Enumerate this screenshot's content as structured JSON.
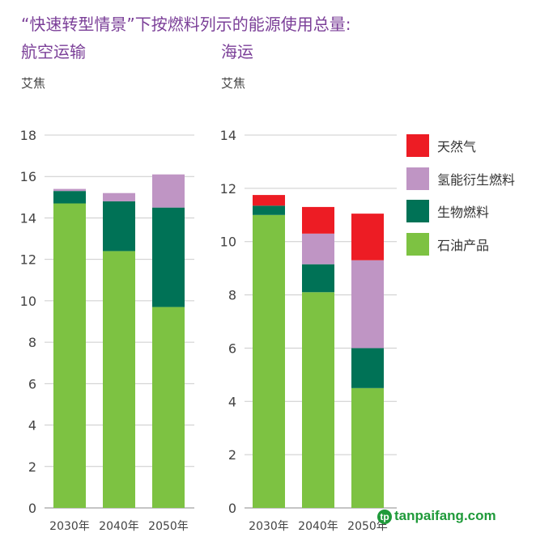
{
  "header": {
    "title": "“快速转型情景”下按燃料列示的能源使用总量:"
  },
  "colors": {
    "oil": "#7dc242",
    "bio": "#007256",
    "hydrogen": "#bf95c4",
    "gas": "#ed1c24",
    "title": "#7b3f98"
  },
  "legend": [
    {
      "key": "gas",
      "label": "天然气"
    },
    {
      "key": "hydrogen",
      "label": "氢能衍生燃料"
    },
    {
      "key": "bio",
      "label": "生物燃料"
    },
    {
      "key": "oil",
      "label": "石油产品"
    }
  ],
  "watermark": "tanpaifang.com",
  "chart_data": [
    {
      "type": "bar",
      "stacked": true,
      "title": "航空运输",
      "ylabel": "艾焦",
      "ylim": [
        0,
        18
      ],
      "yticks": [
        0,
        2,
        4,
        6,
        8,
        10,
        12,
        14,
        16,
        18
      ],
      "categories": [
        "2030年",
        "2040年",
        "2050年"
      ],
      "series": [
        {
          "key": "oil",
          "name": "石油产品",
          "values": [
            14.7,
            12.4,
            9.7
          ]
        },
        {
          "key": "bio",
          "name": "生物燃料",
          "values": [
            0.6,
            2.4,
            4.8
          ]
        },
        {
          "key": "hydrogen",
          "name": "氢能衍生燃料",
          "values": [
            0.1,
            0.4,
            1.6
          ]
        },
        {
          "key": "gas",
          "name": "天然气",
          "values": [
            0,
            0,
            0
          ]
        }
      ],
      "grid": true
    },
    {
      "type": "bar",
      "stacked": true,
      "title": "海运",
      "ylabel": "艾焦",
      "ylim": [
        0,
        14
      ],
      "yticks": [
        0,
        2,
        4,
        6,
        8,
        10,
        12,
        14
      ],
      "categories": [
        "2030年",
        "2040年",
        "2050年"
      ],
      "series": [
        {
          "key": "oil",
          "name": "石油产品",
          "values": [
            11.0,
            8.1,
            4.5
          ]
        },
        {
          "key": "bio",
          "name": "生物燃料",
          "values": [
            0.35,
            1.05,
            1.5
          ]
        },
        {
          "key": "hydrogen",
          "name": "氢能衍生燃料",
          "values": [
            0,
            1.15,
            3.3
          ]
        },
        {
          "key": "gas",
          "name": "天然气",
          "values": [
            0.4,
            1.0,
            1.75
          ]
        }
      ],
      "grid": true
    }
  ]
}
